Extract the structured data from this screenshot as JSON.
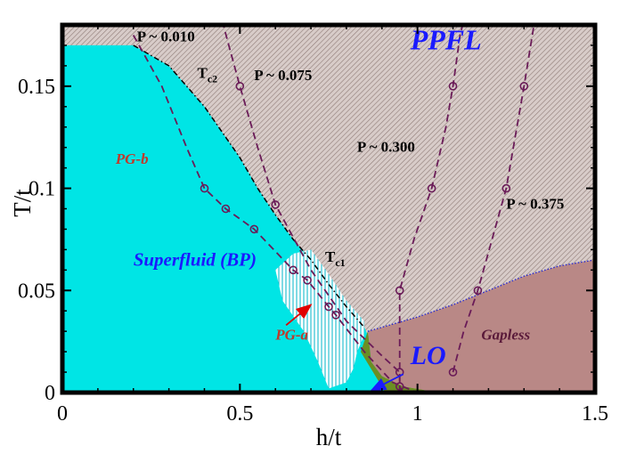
{
  "chart_data": {
    "type": "scatter",
    "title": "",
    "xlabel": "h/t",
    "ylabel": "T/t",
    "xlim": [
      0,
      1.5
    ],
    "ylim": [
      0,
      0.18
    ],
    "grid": false,
    "x_ticks": [
      0,
      0.5,
      1,
      1.5
    ],
    "x_tick_labels": [
      "0",
      "0.5",
      "1",
      "1.5"
    ],
    "y_ticks": [
      0,
      0.05,
      0.1,
      0.15
    ],
    "y_tick_labels": [
      "0",
      "0.05",
      "0.1",
      "0.15"
    ],
    "colors": {
      "superfluid": "#00e5e5",
      "ppfl_hatch": "#c8b8b4",
      "gapless": "#b98886",
      "lo": "#6b8e23",
      "dashed_curve": "#6a1b58",
      "label_blue": "#1a1aff",
      "label_red": "#c0392b",
      "gapless_label": "#5a1a3a"
    },
    "regions": [
      {
        "name": "Superfluid (BP)",
        "color": "superfluid",
        "boundary": [
          [
            0,
            0
          ],
          [
            0,
            0.17
          ],
          [
            0.2,
            0.17
          ],
          [
            0.3,
            0.16
          ],
          [
            0.4,
            0.14
          ],
          [
            0.5,
            0.115
          ],
          [
            0.55,
            0.1
          ],
          [
            0.6,
            0.087
          ],
          [
            0.65,
            0.075
          ],
          [
            0.7,
            0.065
          ],
          [
            0.75,
            0.053
          ],
          [
            0.8,
            0.042
          ],
          [
            0.85,
            0.032
          ],
          [
            0.88,
            0.02
          ],
          [
            0.9,
            0.01
          ],
          [
            0.93,
            0
          ]
        ]
      },
      {
        "name": "PG-a",
        "color": "white-hatch",
        "boundary": [
          [
            0.6,
            0.06
          ],
          [
            0.65,
            0.068
          ],
          [
            0.7,
            0.07
          ],
          [
            0.75,
            0.058
          ],
          [
            0.8,
            0.045
          ],
          [
            0.85,
            0.035
          ],
          [
            0.85,
            0.028
          ],
          [
            0.83,
            0.02
          ],
          [
            0.82,
            0.012
          ],
          [
            0.8,
            0.005
          ],
          [
            0.75,
            0.002
          ],
          [
            0.72,
            0.015
          ],
          [
            0.68,
            0.03
          ],
          [
            0.62,
            0.045
          ]
        ]
      },
      {
        "name": "Gapless",
        "color": "gapless",
        "boundary": [
          [
            0.86,
            0.03
          ],
          [
            1.0,
            0.037
          ],
          [
            1.1,
            0.043
          ],
          [
            1.2,
            0.05
          ],
          [
            1.3,
            0.057
          ],
          [
            1.4,
            0.062
          ],
          [
            1.5,
            0.065
          ],
          [
            1.5,
            0
          ],
          [
            1.06,
            0
          ],
          [
            0.96,
            0.003
          ],
          [
            0.9,
            0.008
          ],
          [
            0.87,
            0.015
          ]
        ]
      },
      {
        "name": "LO",
        "color": "lo",
        "boundary": [
          [
            0.84,
            0.02
          ],
          [
            0.86,
            0.03
          ],
          [
            0.87,
            0.015
          ],
          [
            0.9,
            0.008
          ],
          [
            0.96,
            0.003
          ],
          [
            1.06,
            0
          ],
          [
            0.91,
            0
          ]
        ]
      }
    ],
    "series": [
      {
        "name": "P ~ 0.010",
        "x": [
          0.4,
          0.46,
          0.54,
          0.65,
          0.69,
          0.75,
          0.77
        ],
        "y": [
          0.1,
          0.09,
          0.08,
          0.06,
          0.055,
          0.042,
          0.038
        ],
        "curve": [
          [
            0.2,
            0.175
          ],
          [
            0.28,
            0.15
          ],
          [
            0.35,
            0.12
          ],
          [
            0.4,
            0.1
          ],
          [
            0.46,
            0.09
          ],
          [
            0.54,
            0.08
          ],
          [
            0.65,
            0.06
          ],
          [
            0.69,
            0.055
          ],
          [
            0.75,
            0.042
          ],
          [
            0.77,
            0.038
          ],
          [
            0.85,
            0.02
          ],
          [
            0.93,
            0.005
          ],
          [
            1.0,
            0
          ]
        ]
      },
      {
        "name": "P ~ 0.075",
        "x": [
          0.5,
          0.6,
          0.95,
          0.95
        ],
        "y": [
          0.15,
          0.092,
          0.01,
          0.003
        ],
        "curve": [
          [
            0.45,
            0.182
          ],
          [
            0.5,
            0.15
          ],
          [
            0.55,
            0.12
          ],
          [
            0.6,
            0.092
          ],
          [
            0.7,
            0.06
          ],
          [
            0.8,
            0.035
          ],
          [
            0.9,
            0.018
          ],
          [
            0.95,
            0.01
          ],
          [
            0.95,
            0.003
          ],
          [
            0.96,
            0
          ]
        ]
      },
      {
        "name": "P ~ 0.300",
        "x": [
          0.95,
          1.04,
          1.1
        ],
        "y": [
          0.05,
          0.1,
          0.15
        ],
        "curve": [
          [
            0.95,
            0
          ],
          [
            0.95,
            0.05
          ],
          [
            0.99,
            0.075
          ],
          [
            1.04,
            0.1
          ],
          [
            1.08,
            0.13
          ],
          [
            1.1,
            0.15
          ],
          [
            1.12,
            0.175
          ],
          [
            1.13,
            0.182
          ]
        ]
      },
      {
        "name": "P ~ 0.375",
        "x": [
          1.1,
          1.17,
          1.25,
          1.3
        ],
        "y": [
          0.01,
          0.05,
          0.1,
          0.15
        ],
        "curve": [
          [
            1.1,
            0.01
          ],
          [
            1.13,
            0.03
          ],
          [
            1.17,
            0.05
          ],
          [
            1.21,
            0.075
          ],
          [
            1.25,
            0.1
          ],
          [
            1.28,
            0.13
          ],
          [
            1.3,
            0.15
          ],
          [
            1.33,
            0.182
          ]
        ]
      }
    ],
    "phase_lines": [
      {
        "name": "Tc2",
        "points": [
          [
            0.2,
            0.17
          ],
          [
            0.3,
            0.16
          ],
          [
            0.4,
            0.14
          ],
          [
            0.5,
            0.115
          ],
          [
            0.55,
            0.1
          ],
          [
            0.6,
            0.087
          ],
          [
            0.65,
            0.075
          ],
          [
            0.7,
            0.065
          ],
          [
            0.75,
            0.053
          ],
          [
            0.8,
            0.042
          ],
          [
            0.85,
            0.032
          ]
        ]
      },
      {
        "name": "gapless-boundary",
        "points": [
          [
            0.86,
            0.03
          ],
          [
            1.0,
            0.037
          ],
          [
            1.1,
            0.043
          ],
          [
            1.2,
            0.05
          ],
          [
            1.3,
            0.057
          ],
          [
            1.4,
            0.062
          ],
          [
            1.5,
            0.065
          ]
        ]
      }
    ],
    "annotations": [
      {
        "key": "ppfl",
        "text": "PPFL",
        "x": 0.98,
        "y": 0.168,
        "color": "label_blue",
        "size": 32,
        "italic": true
      },
      {
        "key": "p010",
        "text": "P ~ 0.010",
        "x": 0.21,
        "y": 0.172,
        "color": "#000000",
        "size": 17,
        "italic": false
      },
      {
        "key": "p075",
        "text": "P ~ 0.075",
        "x": 0.54,
        "y": 0.153,
        "color": "#000000",
        "size": 17,
        "italic": false
      },
      {
        "key": "p300",
        "text": "P ~ 0.300",
        "x": 0.83,
        "y": 0.118,
        "color": "#000000",
        "size": 17,
        "italic": false
      },
      {
        "key": "p375",
        "text": "P ~ 0.375",
        "x": 1.25,
        "y": 0.09,
        "color": "#000000",
        "size": 17,
        "italic": false
      },
      {
        "key": "pgb",
        "text": "PG-b",
        "x": 0.15,
        "y": 0.112,
        "color": "label_red",
        "size": 17,
        "italic": true
      },
      {
        "key": "sf",
        "text": "Superfluid (BP)",
        "x": 0.2,
        "y": 0.062,
        "color": "label_blue",
        "size": 21,
        "italic": true
      },
      {
        "key": "pga",
        "text": "PG-a",
        "x": 0.6,
        "y": 0.026,
        "color": "label_red",
        "size": 17,
        "italic": true
      },
      {
        "key": "gapless",
        "text": "Gapless",
        "x": 1.18,
        "y": 0.026,
        "color": "gapless_label",
        "size": 17,
        "italic": true
      },
      {
        "key": "lo",
        "text": "LO",
        "x": 0.98,
        "y": 0.014,
        "color": "label_blue",
        "size": 30,
        "italic": true
      }
    ],
    "subscript_labels": [
      {
        "key": "tc2",
        "main": "T",
        "sub": "c2",
        "x": 0.38,
        "y": 0.154
      },
      {
        "key": "tc1",
        "main": "T",
        "sub": "c1",
        "x": 0.74,
        "y": 0.064
      }
    ],
    "arrows": [
      {
        "from": [
          0.63,
          0.033
        ],
        "to": [
          0.7,
          0.043
        ],
        "color": "#e00000"
      },
      {
        "from": [
          0.96,
          0.009
        ],
        "to": [
          0.87,
          0.001
        ],
        "color": "#1a1aff"
      }
    ]
  }
}
